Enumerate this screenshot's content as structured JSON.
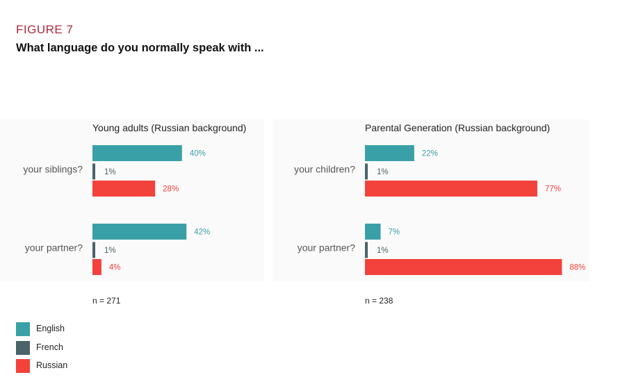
{
  "figure": {
    "label": "FIGURE 7",
    "title": "What language do you normally speak with ..."
  },
  "colors": {
    "English": "#3aa0a8",
    "French": "#4a6368",
    "Russian": "#f2423b",
    "panel_bg": "#fafafa"
  },
  "legend": [
    {
      "name": "English",
      "color": "#3aa0a8"
    },
    {
      "name": "French",
      "color": "#4a6368"
    },
    {
      "name": "Russian",
      "color": "#f2423b"
    }
  ],
  "chart_data": [
    {
      "type": "bar",
      "orientation": "horizontal",
      "title": "Young adults (Russian background)",
      "categories": [
        "your siblings?",
        "your partner?"
      ],
      "series": [
        {
          "name": "English",
          "values": [
            40,
            42
          ]
        },
        {
          "name": "French",
          "values": [
            1,
            1
          ]
        },
        {
          "name": "Russian",
          "values": [
            28,
            4
          ]
        }
      ],
      "value_labels": [
        [
          "40%",
          "1%",
          "28%"
        ],
        [
          "42%",
          "1%",
          "4%"
        ]
      ],
      "n_label": "n = 271",
      "xlim": [
        0,
        100
      ]
    },
    {
      "type": "bar",
      "orientation": "horizontal",
      "title": "Parental Generation (Russian background)",
      "categories": [
        "your children?",
        "your partner?"
      ],
      "series": [
        {
          "name": "English",
          "values": [
            22,
            7
          ]
        },
        {
          "name": "French",
          "values": [
            1,
            1
          ]
        },
        {
          "name": "Russian",
          "values": [
            77,
            88
          ]
        }
      ],
      "value_labels": [
        [
          "22%",
          "1%",
          "77%"
        ],
        [
          "7%",
          "1%",
          "88%"
        ]
      ],
      "n_label": "n = 238",
      "xlim": [
        0,
        100
      ]
    }
  ]
}
